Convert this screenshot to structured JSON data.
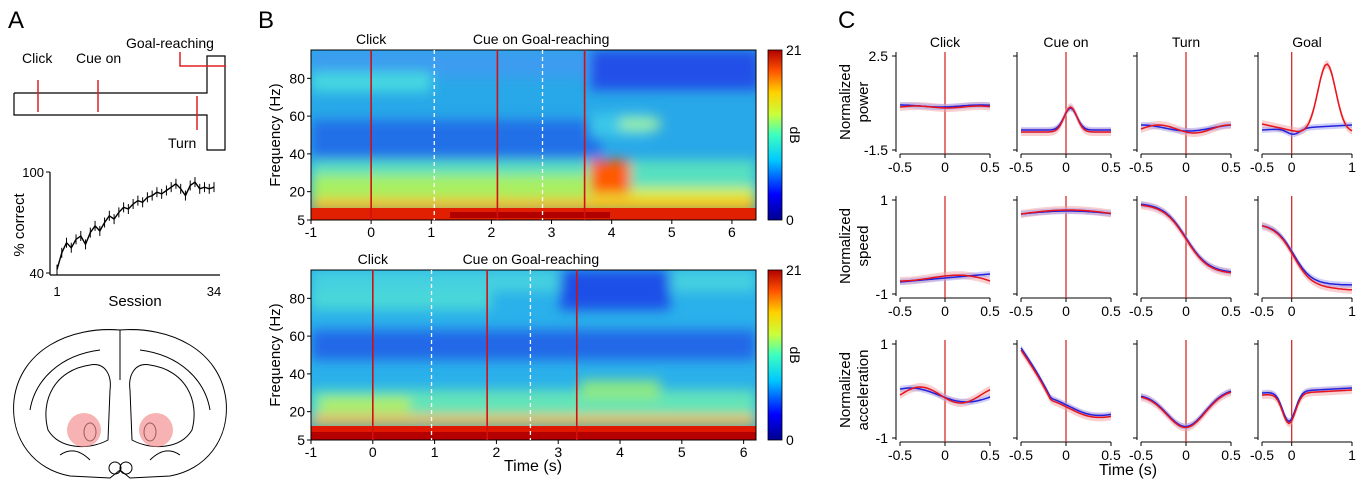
{
  "panels": {
    "A": {
      "letter": "A",
      "maze_labels": {
        "click": "Click",
        "cue_on": "Cue on",
        "goal": "Goal-reaching",
        "turn": "Turn"
      },
      "chart_data": {
        "type": "line",
        "xlabel": "Session",
        "ylabel": "% correct",
        "xticks": [
          "1",
          "34"
        ],
        "yticks": [
          "40",
          "100"
        ],
        "xlim": [
          1,
          34
        ],
        "ylim": [
          40,
          100
        ],
        "x": [
          1,
          2,
          3,
          4,
          5,
          6,
          7,
          8,
          9,
          10,
          11,
          12,
          13,
          14,
          15,
          16,
          17,
          18,
          19,
          20,
          21,
          22,
          23,
          24,
          25,
          26,
          27,
          28,
          29,
          30,
          31,
          32,
          33,
          34
        ],
        "values": [
          42,
          52,
          58,
          55,
          60,
          62,
          57,
          64,
          68,
          65,
          70,
          74,
          72,
          76,
          79,
          78,
          81,
          83,
          82,
          85,
          86,
          88,
          87,
          89,
          91,
          93,
          90,
          86,
          92,
          94,
          90,
          91,
          90,
          91
        ]
      }
    },
    "B": {
      "letter": "B",
      "plots": [
        {
          "event_labels": [
            "Click",
            "Cue on",
            "Goal-reaching"
          ],
          "event_times": [
            0,
            2.1,
            3.55
          ],
          "dashed_times": [
            1.05,
            2.85
          ],
          "xlim": [
            -1,
            6.4
          ],
          "xticks": [
            "-1",
            "0",
            "1",
            "2",
            "3",
            "4",
            "5",
            "6"
          ],
          "ylabel": "Frequency (Hz)",
          "yticks": [
            "5",
            "20",
            "40",
            "60",
            "80"
          ],
          "colorbar": {
            "label": "dB",
            "max": "21",
            "min": "0"
          }
        },
        {
          "event_labels": [
            "Click",
            "Cue on",
            "Goal-reaching"
          ],
          "event_times": [
            0,
            1.85,
            3.3
          ],
          "dashed_times": [
            0.95,
            2.55
          ],
          "xlim": [
            -1,
            6.2
          ],
          "xticks": [
            "-1",
            "0",
            "1",
            "2",
            "3",
            "4",
            "5",
            "6"
          ],
          "ylabel": "Frequency (Hz)",
          "yticks": [
            "5",
            "20",
            "40",
            "60",
            "80"
          ],
          "colorbar": {
            "label": "dB",
            "max": "21",
            "min": "0"
          }
        }
      ],
      "xlabel": "Time (s)"
    },
    "C": {
      "letter": "C",
      "columns": [
        "Click",
        "Cue on",
        "Turn",
        "Goal"
      ],
      "row_labels": [
        [
          "Normalized",
          "power"
        ],
        [
          "Normalized",
          "speed"
        ],
        [
          "Normalized",
          "acceleration"
        ]
      ],
      "row_yticks": [
        [
          "2.5",
          "-1.5"
        ],
        [
          "1",
          "-1"
        ],
        [
          "1",
          "-1"
        ]
      ],
      "xticks_short": [
        "-0.5",
        "0",
        "0.5"
      ],
      "xticks_long": [
        "-0.5",
        "0",
        "1"
      ],
      "xlabel": "Time (s)",
      "colors": {
        "red": "#e8141b",
        "blue": "#2222dd",
        "event": "#d11a1a"
      }
    }
  },
  "chart_data": [
    {
      "type": "line",
      "panel": "C-power-Goal",
      "x": [
        -0.5,
        -0.25,
        0,
        0.2,
        0.4,
        0.6,
        0.8,
        1
      ],
      "series": [
        {
          "values": [
            -0.3,
            -0.5,
            -0.9,
            -0.2,
            1.2,
            2.4,
            1.8,
            0.8
          ]
        },
        {
          "values": [
            -0.3,
            -0.6,
            -1.0,
            -0.8,
            -0.6,
            -0.5,
            -0.4,
            -0.4
          ]
        }
      ]
    },
    {
      "type": "line",
      "panel": "C-power-Cue",
      "x": [
        -0.5,
        -0.25,
        0,
        0.1,
        0.25,
        0.5
      ],
      "series": [
        {
          "values": [
            -0.4,
            -0.5,
            0.2,
            0.4,
            -0.6,
            -0.6
          ]
        },
        {
          "values": [
            -0.4,
            -0.5,
            0.1,
            0.3,
            -0.6,
            -0.6
          ]
        }
      ]
    }
  ]
}
